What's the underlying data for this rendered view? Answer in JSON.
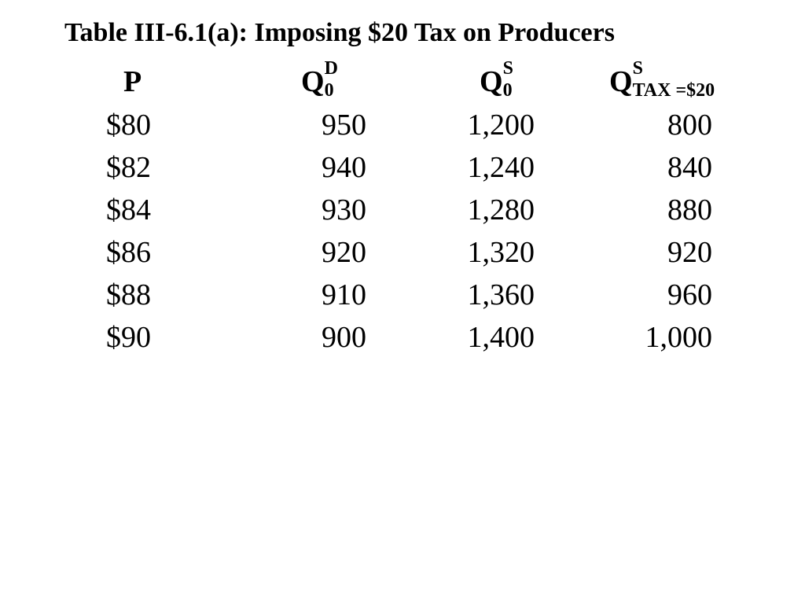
{
  "title": "Table III-6.1(a): Imposing $20 Tax on Producers",
  "headers": {
    "p": "P",
    "qd_base": "Q",
    "qd_sup": "D",
    "qd_sub": "0",
    "qs_base": "Q",
    "qs_sup": "S",
    "qs_sub": "0",
    "qtax_base": "Q",
    "qtax_sup": "S",
    "qtax_sub": "TAX =$20"
  },
  "rows": [
    {
      "p": "$80",
      "qd": "950",
      "qs": "1,200",
      "qtax": "800"
    },
    {
      "p": "$82",
      "qd": "940",
      "qs": "1,240",
      "qtax": "840"
    },
    {
      "p": "$84",
      "qd": "930",
      "qs": "1,280",
      "qtax": "880"
    },
    {
      "p": "$86",
      "qd": "920",
      "qs": "1,320",
      "qtax": "920"
    },
    {
      "p": "$88",
      "qd": "910",
      "qs": "1,360",
      "qtax": "960"
    },
    {
      "p": "$90",
      "qd": "900",
      "qs": "1,400",
      "qtax": "1,000"
    }
  ]
}
